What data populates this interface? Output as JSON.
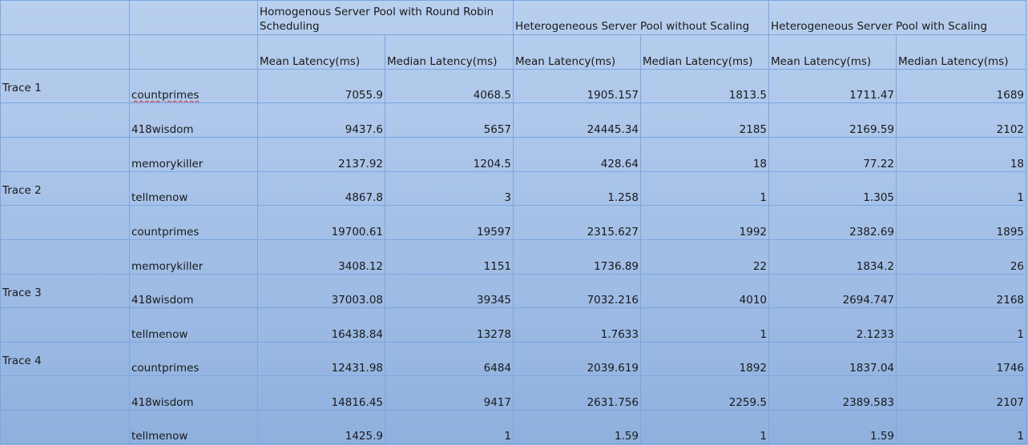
{
  "header": {
    "groups": [
      "Homogenous Server Pool with Round Robin Scheduling",
      "Heterogeneous Server Pool without Scaling",
      "Heterogeneous Server Pool with Scaling"
    ],
    "mean_label": "Mean Latency(ms)",
    "median_label": "Median Latency(ms)"
  },
  "rows": [
    {
      "trace": "Trace 1",
      "app": "countprimes",
      "values": [
        "7055.9",
        "4068.5",
        "1905.157",
        "1813.5",
        "1711.47",
        "1689"
      ]
    },
    {
      "trace": "",
      "app": "418wisdom",
      "values": [
        "9437.6",
        "5657",
        "24445.34",
        "2185",
        "2169.59",
        "2102"
      ]
    },
    {
      "trace": "",
      "app": "memorykiller",
      "values": [
        "2137.92",
        "1204.5",
        "428.64",
        "18",
        "77.22",
        "18"
      ]
    },
    {
      "trace": "Trace 2",
      "app": "tellmenow",
      "values": [
        "4867.8",
        "3",
        "1.258",
        "1",
        "1.305",
        "1"
      ]
    },
    {
      "trace": "",
      "app": "countprimes",
      "values": [
        "19700.61",
        "19597",
        "2315.627",
        "1992",
        "2382.69",
        "1895"
      ]
    },
    {
      "trace": "",
      "app": "memorykiller",
      "values": [
        "3408.12",
        "1151",
        "1736.89",
        "22",
        "1834.2",
        "26"
      ]
    },
    {
      "trace": "Trace 3",
      "app": "418wisdom",
      "values": [
        "37003.08",
        "39345",
        "7032.216",
        "4010",
        "2694.747",
        "2168"
      ]
    },
    {
      "trace": "",
      "app": "tellmenow",
      "values": [
        "16438.84",
        "13278",
        "1.7633",
        "1",
        "2.1233",
        "1"
      ]
    },
    {
      "trace": "Trace 4",
      "app": "countprimes",
      "values": [
        "12431.98",
        "6484",
        "2039.619",
        "1892",
        "1837.04",
        "1746"
      ]
    },
    {
      "trace": "",
      "app": "418wisdom",
      "values": [
        "14816.45",
        "9417",
        "2631.756",
        "2259.5",
        "2389.583",
        "2107"
      ]
    },
    {
      "trace": "",
      "app": "tellmenow",
      "values": [
        "1425.9",
        "1",
        "1.59",
        "1",
        "1.59",
        "1"
      ]
    }
  ]
}
